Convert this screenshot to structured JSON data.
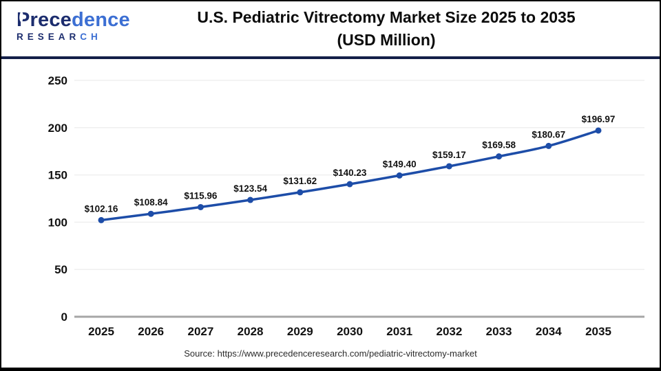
{
  "header": {
    "logo": {
      "name_dark": "Prece",
      "name_light": "dence",
      "sub_dark": "RESEAR",
      "sub_light": "CH",
      "color_dark": "#1c2d6e",
      "color_light": "#3c6fd3"
    },
    "title_line1": "U.S. Pediatric Vitrectomy Market Size 2025 to 2035",
    "title_line2": "(USD Million)"
  },
  "chart_data": {
    "type": "line",
    "title": "U.S. Pediatric Vitrectomy Market Size 2025 to 2035 (USD Million)",
    "categories": [
      "2025",
      "2026",
      "2027",
      "2028",
      "2029",
      "2030",
      "2031",
      "2032",
      "2033",
      "2034",
      "2035"
    ],
    "values": [
      102.16,
      108.84,
      115.96,
      123.54,
      131.62,
      140.23,
      149.4,
      159.17,
      169.58,
      180.67,
      196.97
    ],
    "data_label_prefix": "$",
    "ylim": [
      0,
      250
    ],
    "ytick_step": 50,
    "grid": true,
    "legend": "none",
    "line_color": "#1d4da8",
    "marker_color": "#1d4da8",
    "grid_color": "#efefef",
    "axis_line_color": "#a6a6a6",
    "tick_label_color": "#111111",
    "data_label_color": "#111111"
  },
  "footer": {
    "source": "Source: https://www.precedenceresearch.com/pediatric-vitrectomy-market"
  }
}
